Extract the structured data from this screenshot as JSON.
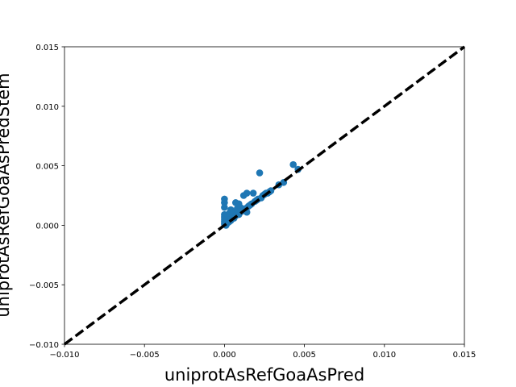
{
  "chart_data": {
    "type": "scatter",
    "xlabel": "uniprotAsRefGoaAsPred",
    "ylabel": "uniprotAsRefGoaAsPredStem",
    "xlim": [
      -0.01,
      0.015
    ],
    "ylim": [
      -0.01,
      0.015
    ],
    "xticks": [
      -0.01,
      -0.005,
      0.0,
      0.005,
      0.01,
      0.015
    ],
    "yticks": [
      -0.01,
      -0.005,
      0.0,
      0.005,
      0.01,
      0.015
    ],
    "xtick_labels": [
      "−0.010",
      "−0.005",
      "0.000",
      "0.005",
      "0.010",
      "0.015"
    ],
    "ytick_labels": [
      "−0.010",
      "−0.005",
      "0.000",
      "0.005",
      "0.010",
      "0.015"
    ],
    "grid": false,
    "marker_color": "#1f77b4",
    "reference_line": {
      "style": "dashed",
      "color": "#000000",
      "from": [
        -0.01,
        -0.01
      ],
      "to": [
        0.015,
        0.015
      ]
    },
    "series": [
      {
        "points": [
          [
            0.0,
            0.0022
          ],
          [
            0.0,
            0.0019
          ],
          [
            0.0,
            0.0015
          ],
          [
            0.0,
            0.0009
          ],
          [
            0.0,
            0.0007
          ],
          [
            0.0,
            0.0005
          ],
          [
            0.0,
            0.0003
          ],
          [
            0.0,
            0.0001
          ],
          [
            0.0001,
            0.0
          ],
          [
            0.0001,
            0.0004
          ],
          [
            0.0002,
            0.0002
          ],
          [
            0.0002,
            0.0007
          ],
          [
            0.0003,
            0.0003
          ],
          [
            0.0003,
            0.001
          ],
          [
            0.0004,
            0.0004
          ],
          [
            0.0004,
            0.0013
          ],
          [
            0.0005,
            0.0006
          ],
          [
            0.0005,
            0.0009
          ],
          [
            0.0006,
            0.0006
          ],
          [
            0.0006,
            0.0011
          ],
          [
            0.0007,
            0.0019
          ],
          [
            0.0007,
            0.0008
          ],
          [
            0.0008,
            0.001
          ],
          [
            0.0008,
            0.0014
          ],
          [
            0.0009,
            0.0009
          ],
          [
            0.0009,
            0.0018
          ],
          [
            0.001,
            0.0011
          ],
          [
            0.001,
            0.0015
          ],
          [
            0.0011,
            0.0012
          ],
          [
            0.0012,
            0.0013
          ],
          [
            0.0012,
            0.0025
          ],
          [
            0.0013,
            0.0014
          ],
          [
            0.0014,
            0.0027
          ],
          [
            0.0014,
            0.0011
          ],
          [
            0.0015,
            0.0016
          ],
          [
            0.0016,
            0.0017
          ],
          [
            0.0017,
            0.0018
          ],
          [
            0.0018,
            0.0027
          ],
          [
            0.0019,
            0.002
          ],
          [
            0.002,
            0.0021
          ],
          [
            0.0021,
            0.0022
          ],
          [
            0.0022,
            0.0044
          ],
          [
            0.0023,
            0.0023
          ],
          [
            0.0024,
            0.0025
          ],
          [
            0.0025,
            0.0026
          ],
          [
            0.0026,
            0.0027
          ],
          [
            0.0027,
            0.0027
          ],
          [
            0.0028,
            0.0028
          ],
          [
            0.0029,
            0.0029
          ],
          [
            0.0034,
            0.0034
          ],
          [
            0.0037,
            0.0036
          ],
          [
            0.0043,
            0.0051
          ],
          [
            0.0046,
            0.0047
          ]
        ]
      }
    ]
  }
}
